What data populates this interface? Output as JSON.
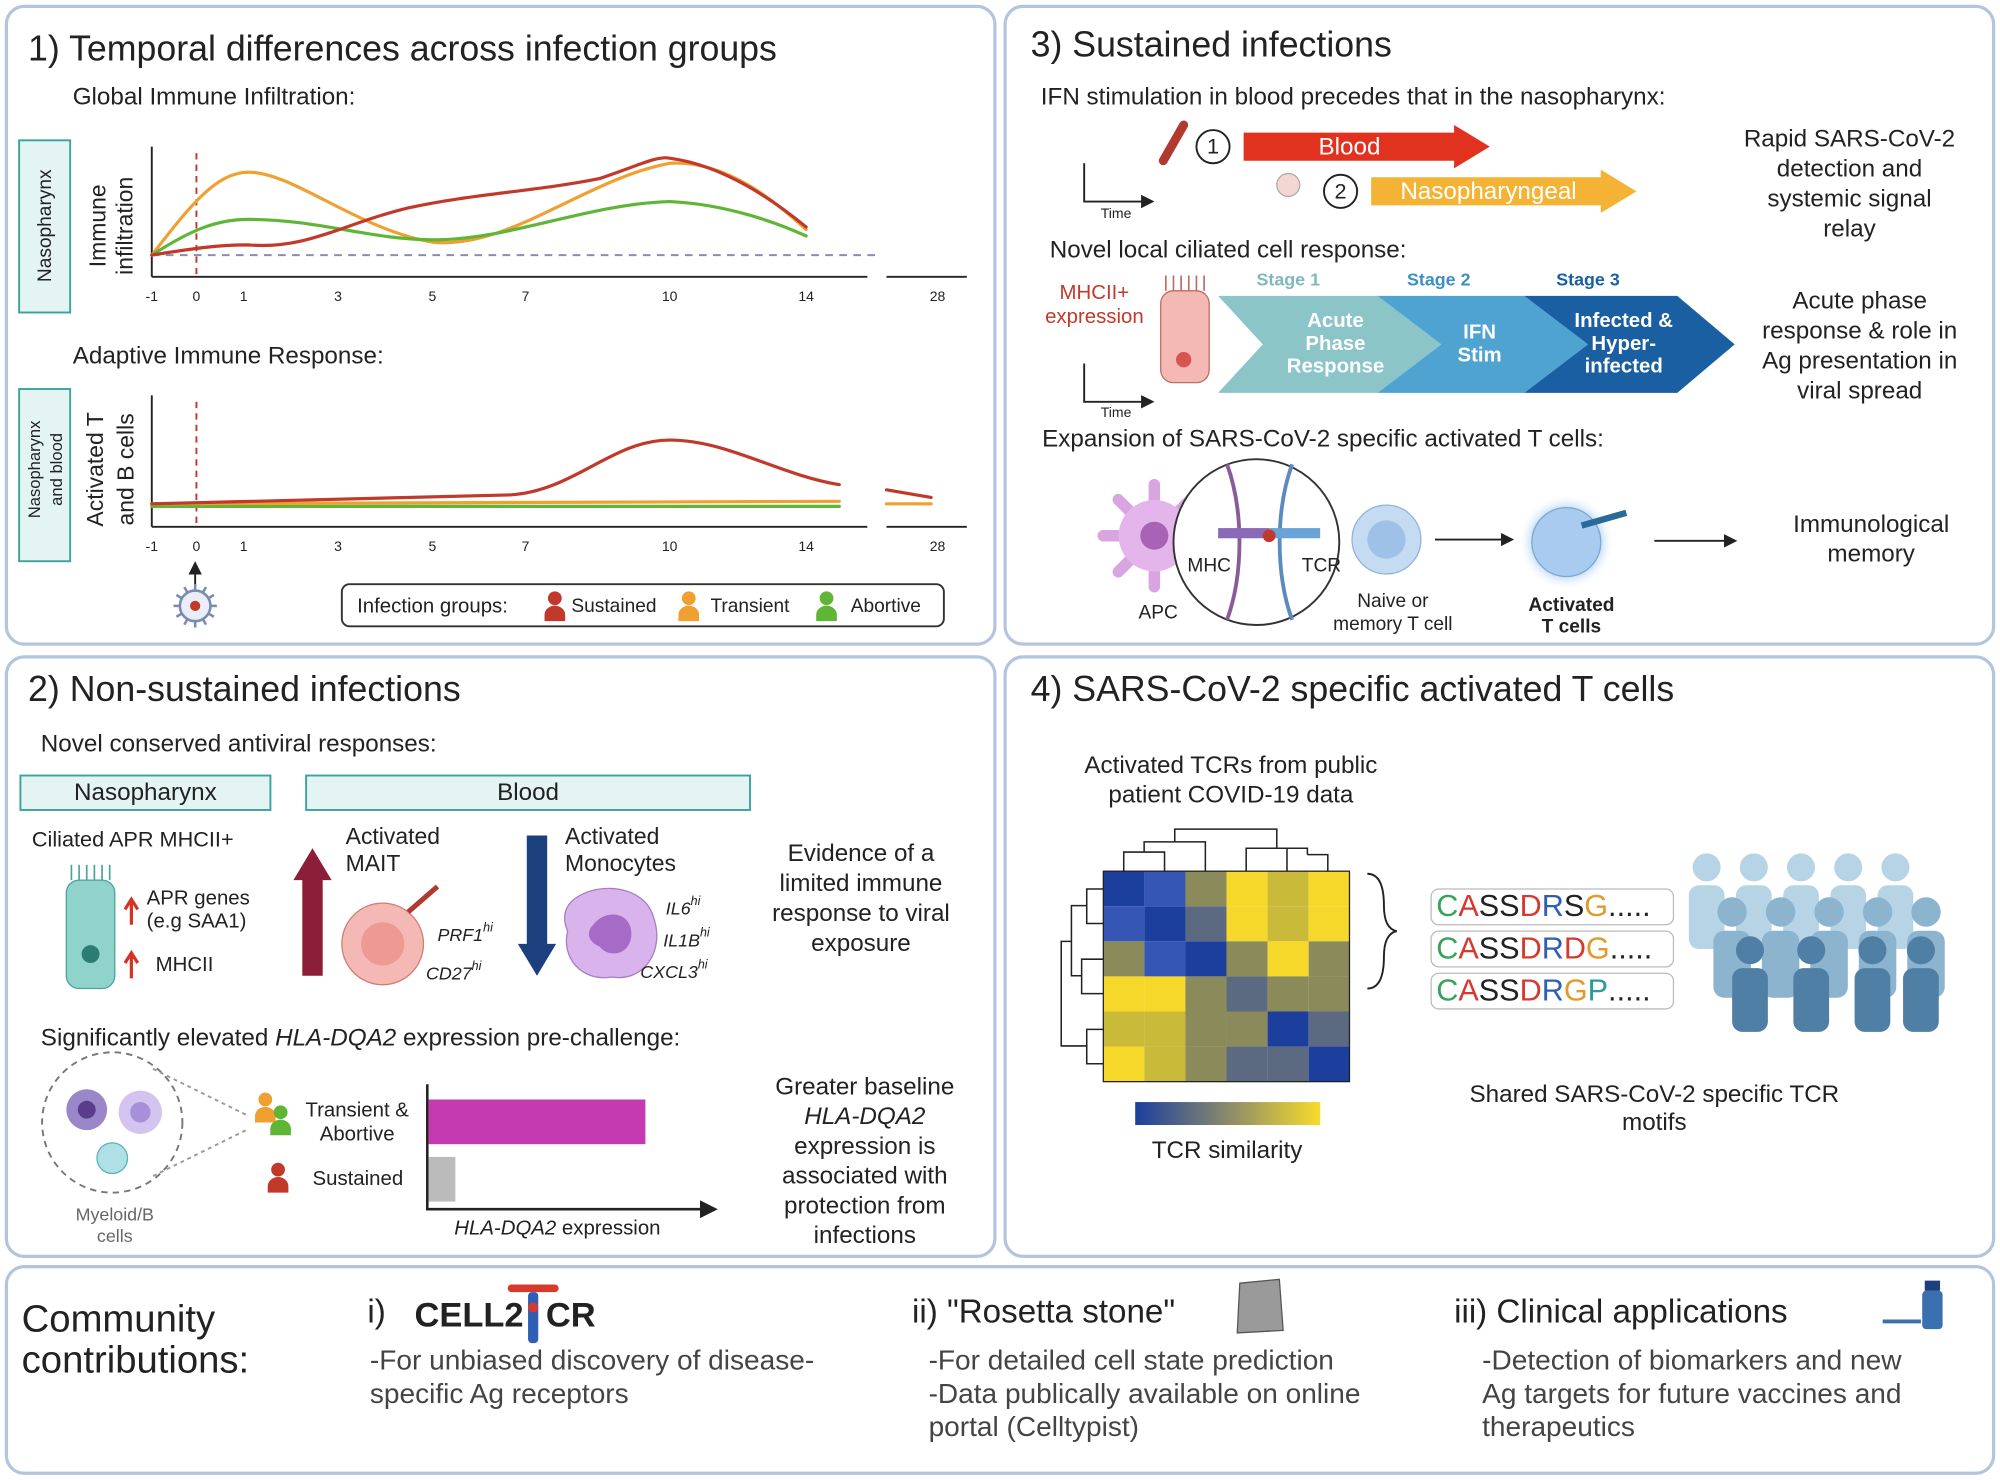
{
  "panel1": {
    "title": "1) Temporal differences across infection groups",
    "global_heading": "Global Immune Infiltration:",
    "nasopharynx_label": "Nasopharynx",
    "infiltration_axis": [
      "Immune",
      "infiltration"
    ],
    "x_ticks": [
      "-1",
      "0",
      "1",
      "3",
      "5",
      "7",
      "10",
      "14",
      "28"
    ],
    "adaptive_heading": "Adaptive Immune Response:",
    "np_blood_label": [
      "Nasopharynx",
      "and blood"
    ],
    "activated_axis": [
      "Activated T",
      "and B cells"
    ],
    "legend_title": "Infection groups:",
    "groups": [
      {
        "name": "Sustained",
        "color": "#c0392b"
      },
      {
        "name": "Transient",
        "color": "#f0a030"
      },
      {
        "name": "Abortive",
        "color": "#5fb536"
      }
    ]
  },
  "panel2": {
    "title": "2) Non-sustained infections",
    "antiviral_heading": "Novel conserved antiviral responses:",
    "nasopharynx": "Nasopharynx",
    "blood": "Blood",
    "ciliated": "Ciliated APR MHCII+",
    "apr_genes": [
      "APR genes",
      "(e.g SAA1)"
    ],
    "mhcii": "MHCII",
    "mait": [
      "Activated",
      "MAIT"
    ],
    "mait_genes": [
      {
        "gene": "PRF1",
        "sup": "hi"
      },
      {
        "gene": "CD27",
        "sup": "hi"
      }
    ],
    "monocytes": [
      "Activated",
      "Monocytes"
    ],
    "monocyte_genes": [
      {
        "gene": "IL6",
        "sup": "hi"
      },
      {
        "gene": "IL1B",
        "sup": "hi"
      },
      {
        "gene": "CXCL3",
        "sup": "hi"
      }
    ],
    "evidence_text": [
      "Evidence of a",
      "limited immune",
      "response to viral",
      "exposure"
    ],
    "hla_heading": [
      "Significantly elevated ",
      "HLA-DQA2",
      " expression pre-challenge:"
    ],
    "myeloid": [
      "Myeloid/B",
      "cells"
    ],
    "transient_abortive": [
      "Transient &",
      "Abortive"
    ],
    "sustained": "Sustained",
    "x_label": [
      "HLA-DQA2",
      " expression"
    ],
    "baseline_text": [
      "Greater baseline",
      "HLA-DQA2",
      "expression is",
      "associated with",
      "protection from",
      "infections"
    ]
  },
  "panel3": {
    "title": "3) Sustained infections",
    "ifn_heading": "IFN stimulation in blood precedes that in the nasopharynx:",
    "time_label": "Time",
    "steps": [
      "1",
      "2"
    ],
    "blood": "Blood",
    "nasopharyngeal": "Nasopharyngeal",
    "rapid_text": [
      "Rapid SARS-CoV-2",
      "detection and",
      "systemic signal",
      "relay"
    ],
    "ciliated_heading": "Novel local ciliated cell response:",
    "mhcii_label": [
      "MHCII+",
      "expression"
    ],
    "stages": [
      {
        "label": "Stage 1",
        "text": [
          "Acute",
          "Phase",
          "Response"
        ]
      },
      {
        "label": "Stage 2",
        "text": [
          "IFN",
          "Stim"
        ]
      },
      {
        "label": "Stage 3",
        "text": [
          "Infected &",
          "Hyper-",
          "infected"
        ]
      }
    ],
    "acute_text": [
      "Acute phase",
      "response & role in",
      "Ag presentation in",
      "viral spread"
    ],
    "expansion_heading": "Expansion of SARS-CoV-2 specific activated T cells:",
    "mhc": "MHC",
    "tcr": "TCR",
    "apc": "APC",
    "naive": [
      "Naive or",
      "memory T cell"
    ],
    "activated": [
      "Activated",
      "T cells"
    ],
    "memory": [
      "Immunological",
      "memory"
    ]
  },
  "panel4": {
    "title": "4) SARS-CoV-2 specific activated T cells",
    "tcr_source": [
      "Activated TCRs from public",
      "patient COVID-19 data"
    ],
    "colorbar_label": "TCR similarity",
    "motifs": [
      "CASSDRSG.....",
      "CASSDRDG.....",
      "CASSDRGP....."
    ],
    "shared_text": [
      "Shared SARS-CoV-2 specific TCR",
      "motifs"
    ]
  },
  "community": {
    "heading": [
      "Community",
      "contributions:"
    ],
    "items": [
      {
        "label": "i)",
        "logo": [
          "CELL2",
          "CR"
        ],
        "text": [
          "-For unbiased discovery of disease-",
          "specific Ag receptors"
        ]
      },
      {
        "label": "ii) \"Rosetta stone\"",
        "text": [
          "-For detailed cell state prediction",
          "-Data publically available on online",
          "portal (Celltypist)"
        ]
      },
      {
        "label": "iii) Clinical applications",
        "text": [
          "-Detection of biomarkers and new",
          "Ag targets for future vaccines and",
          "therapeutics"
        ]
      }
    ]
  }
}
